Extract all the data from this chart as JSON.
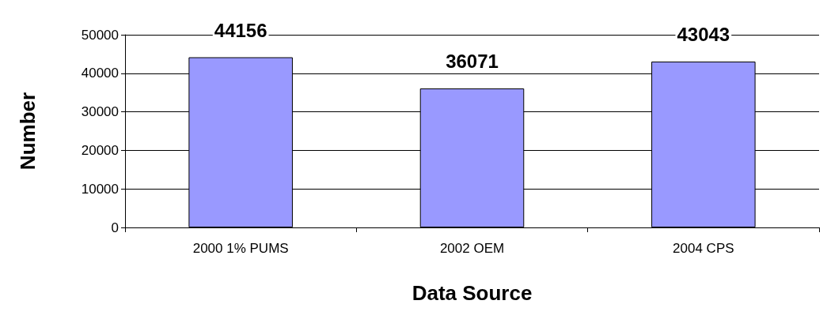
{
  "chart_data": {
    "type": "bar",
    "xlabel": "Data Source",
    "ylabel": "Number",
    "categories": [
      "2000 1% PUMS",
      "2002 OEM",
      "2004 CPS"
    ],
    "values": [
      44156,
      36071,
      43043
    ],
    "color": "#9999ff",
    "ylim": [
      0,
      50000
    ],
    "yticks": [
      0,
      10000,
      20000,
      30000,
      40000,
      50000
    ],
    "grid": "y",
    "data_labels": true
  }
}
